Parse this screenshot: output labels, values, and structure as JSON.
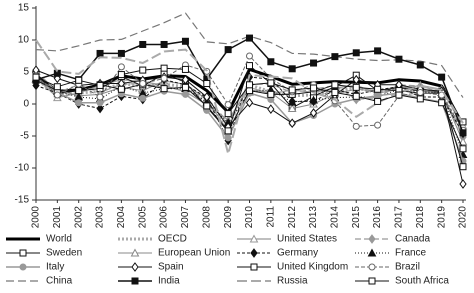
{
  "chart_data": {
    "type": "line",
    "categories": [
      "2000",
      "2001",
      "2002",
      "2003",
      "2004",
      "2005",
      "2006",
      "2007",
      "2008",
      "2009",
      "2010",
      "2011",
      "2012",
      "2013",
      "2014",
      "2015",
      "2016",
      "2017",
      "2018",
      "2019",
      "2020"
    ],
    "ylim": [
      -15,
      15
    ],
    "yticks": [
      -15,
      -10,
      -5,
      0,
      5,
      10,
      15
    ],
    "grid": false,
    "series": [
      {
        "name": "World",
        "color": "#000000",
        "width": 3,
        "dash": "",
        "marker": "none",
        "values": [
          4.4,
          2.0,
          2.2,
          3.0,
          4.4,
          3.9,
          4.4,
          4.3,
          2.1,
          -1.3,
          5.4,
          4.3,
          3.1,
          3.3,
          3.5,
          3.4,
          3.3,
          3.8,
          3.6,
          2.8,
          -3.3
        ]
      },
      {
        "name": "OECD",
        "color": "#aaaaaa",
        "width": 3,
        "dash": "2 2",
        "marker": "none",
        "values": [
          4.0,
          1.3,
          1.7,
          2.0,
          3.2,
          2.8,
          3.1,
          2.7,
          0.3,
          -3.4,
          3.0,
          1.9,
          1.3,
          1.4,
          2.1,
          2.5,
          1.8,
          2.6,
          2.3,
          1.7,
          -4.5
        ]
      },
      {
        "name": "United States",
        "color": "#999999",
        "width": 1.2,
        "dash": "",
        "marker": "triangle-open",
        "values": [
          4.1,
          1.0,
          1.7,
          2.9,
          3.8,
          3.5,
          2.9,
          1.9,
          -0.1,
          -2.5,
          2.6,
          1.6,
          2.2,
          1.8,
          2.5,
          2.9,
          1.7,
          2.3,
          2.9,
          2.3,
          -3.4
        ]
      },
      {
        "name": "Canada",
        "color": "#999999",
        "width": 1.2,
        "dash": "6 3",
        "marker": "diamond-filled",
        "values": [
          5.2,
          1.8,
          3.0,
          1.8,
          3.1,
          3.2,
          2.6,
          2.1,
          1.0,
          -2.9,
          3.1,
          3.1,
          1.8,
          2.3,
          2.9,
          0.7,
          1.0,
          3.0,
          2.8,
          1.9,
          -5.2
        ]
      },
      {
        "name": "Sweden",
        "color": "#111111",
        "width": 1,
        "dash": "",
        "marker": "square-open",
        "values": [
          4.8,
          1.6,
          2.1,
          2.4,
          4.3,
          2.8,
          4.7,
          3.4,
          -0.5,
          -4.3,
          6.0,
          3.2,
          -0.6,
          1.2,
          2.7,
          4.5,
          2.1,
          2.6,
          2.0,
          2.0,
          -2.8
        ]
      },
      {
        "name": "European Union",
        "color": "#888888",
        "width": 1,
        "dash": "",
        "marker": "triangle-open",
        "values": [
          3.9,
          2.2,
          1.3,
          1.5,
          2.6,
          2.1,
          3.6,
          3.1,
          0.7,
          -4.3,
          2.2,
          1.8,
          -0.7,
          0.0,
          1.6,
          2.3,
          2.0,
          2.8,
          2.1,
          1.8,
          -5.9
        ]
      },
      {
        "name": "Germany",
        "color": "#111111",
        "width": 1,
        "dash": "3 2",
        "marker": "diamond-filled",
        "values": [
          2.9,
          1.7,
          0.0,
          -0.7,
          1.2,
          0.7,
          3.8,
          3.0,
          1.0,
          -5.7,
          4.2,
          3.9,
          0.4,
          0.4,
          2.2,
          1.5,
          2.2,
          2.7,
          1.1,
          1.1,
          -4.6
        ]
      },
      {
        "name": "France",
        "color": "#111111",
        "width": 1,
        "dash": "1 2",
        "marker": "triangle-filled",
        "values": [
          3.9,
          2.0,
          1.1,
          0.8,
          2.8,
          1.7,
          2.4,
          2.4,
          0.3,
          -2.9,
          1.9,
          2.2,
          0.3,
          0.6,
          1.0,
          1.1,
          1.1,
          2.3,
          1.9,
          1.8,
          -7.9
        ]
      },
      {
        "name": "Italy",
        "color": "#999999",
        "width": 1.5,
        "dash": "",
        "marker": "circle-filled",
        "values": [
          3.8,
          1.8,
          0.2,
          0.2,
          1.6,
          0.9,
          2.0,
          1.5,
          -1.0,
          -5.3,
          1.7,
          0.7,
          -3.0,
          -1.8,
          0.0,
          0.8,
          1.3,
          1.7,
          0.9,
          0.3,
          -8.9
        ]
      },
      {
        "name": "Spain",
        "color": "#111111",
        "width": 1,
        "dash": "",
        "marker": "diamond-open",
        "values": [
          5.3,
          4.0,
          2.9,
          3.2,
          3.2,
          3.7,
          4.2,
          3.8,
          1.1,
          -3.6,
          0.2,
          -0.8,
          -3.0,
          -1.4,
          1.4,
          3.8,
          3.0,
          3.0,
          2.3,
          2.0,
          -12.5
        ]
      },
      {
        "name": "United Kingdom",
        "color": "#111111",
        "width": 1,
        "dash": "",
        "marker": "square-open",
        "values": [
          3.7,
          2.1,
          2.1,
          3.0,
          2.3,
          3.1,
          2.4,
          2.6,
          -0.3,
          -4.2,
          2.1,
          1.5,
          1.5,
          1.9,
          3.0,
          2.6,
          2.3,
          2.1,
          1.7,
          1.7,
          -9.8
        ]
      },
      {
        "name": "Brazil",
        "color": "#666666",
        "width": 1,
        "dash": "4 2",
        "marker": "circle-open",
        "values": [
          4.4,
          1.4,
          3.1,
          1.1,
          5.8,
          3.2,
          4.0,
          6.1,
          5.1,
          -0.1,
          7.5,
          4.0,
          1.9,
          3.0,
          0.5,
          -3.5,
          -3.3,
          1.3,
          1.8,
          1.4,
          -4.1
        ]
      },
      {
        "name": "China",
        "color": "#777777",
        "width": 1.2,
        "dash": "8 4",
        "marker": "none",
        "values": [
          8.5,
          8.3,
          9.1,
          10.0,
          10.1,
          11.4,
          12.7,
          14.2,
          9.7,
          9.4,
          10.6,
          9.6,
          7.9,
          7.8,
          7.4,
          7.0,
          6.8,
          6.9,
          6.7,
          6.0,
          1.0
        ]
      },
      {
        "name": "India",
        "color": "#111111",
        "width": 1.5,
        "dash": "",
        "marker": "square-filled",
        "values": [
          3.8,
          4.8,
          3.8,
          7.9,
          7.9,
          9.3,
          9.3,
          9.8,
          3.9,
          8.5,
          10.3,
          6.6,
          5.5,
          6.4,
          7.4,
          8.0,
          8.3,
          7.0,
          6.1,
          4.2,
          -4.5
        ]
      },
      {
        "name": "Russia",
        "color": "#aaaaaa",
        "width": 2,
        "dash": "10 4",
        "marker": "none",
        "values": [
          10.0,
          5.1,
          4.7,
          7.3,
          7.2,
          6.4,
          8.2,
          8.5,
          5.2,
          -7.8,
          4.5,
          4.3,
          4.0,
          1.8,
          0.7,
          -2.0,
          0.2,
          1.8,
          2.8,
          2.2,
          -3.0
        ]
      },
      {
        "name": "South Africa",
        "color": "#111111",
        "width": 1,
        "dash": "",
        "marker": "square-open",
        "values": [
          4.2,
          2.7,
          3.7,
          2.9,
          4.6,
          5.3,
          5.6,
          5.4,
          3.2,
          -1.5,
          3.0,
          3.3,
          2.2,
          2.5,
          1.8,
          1.2,
          0.4,
          1.4,
          0.8,
          0.2,
          -7.0
        ]
      }
    ]
  }
}
